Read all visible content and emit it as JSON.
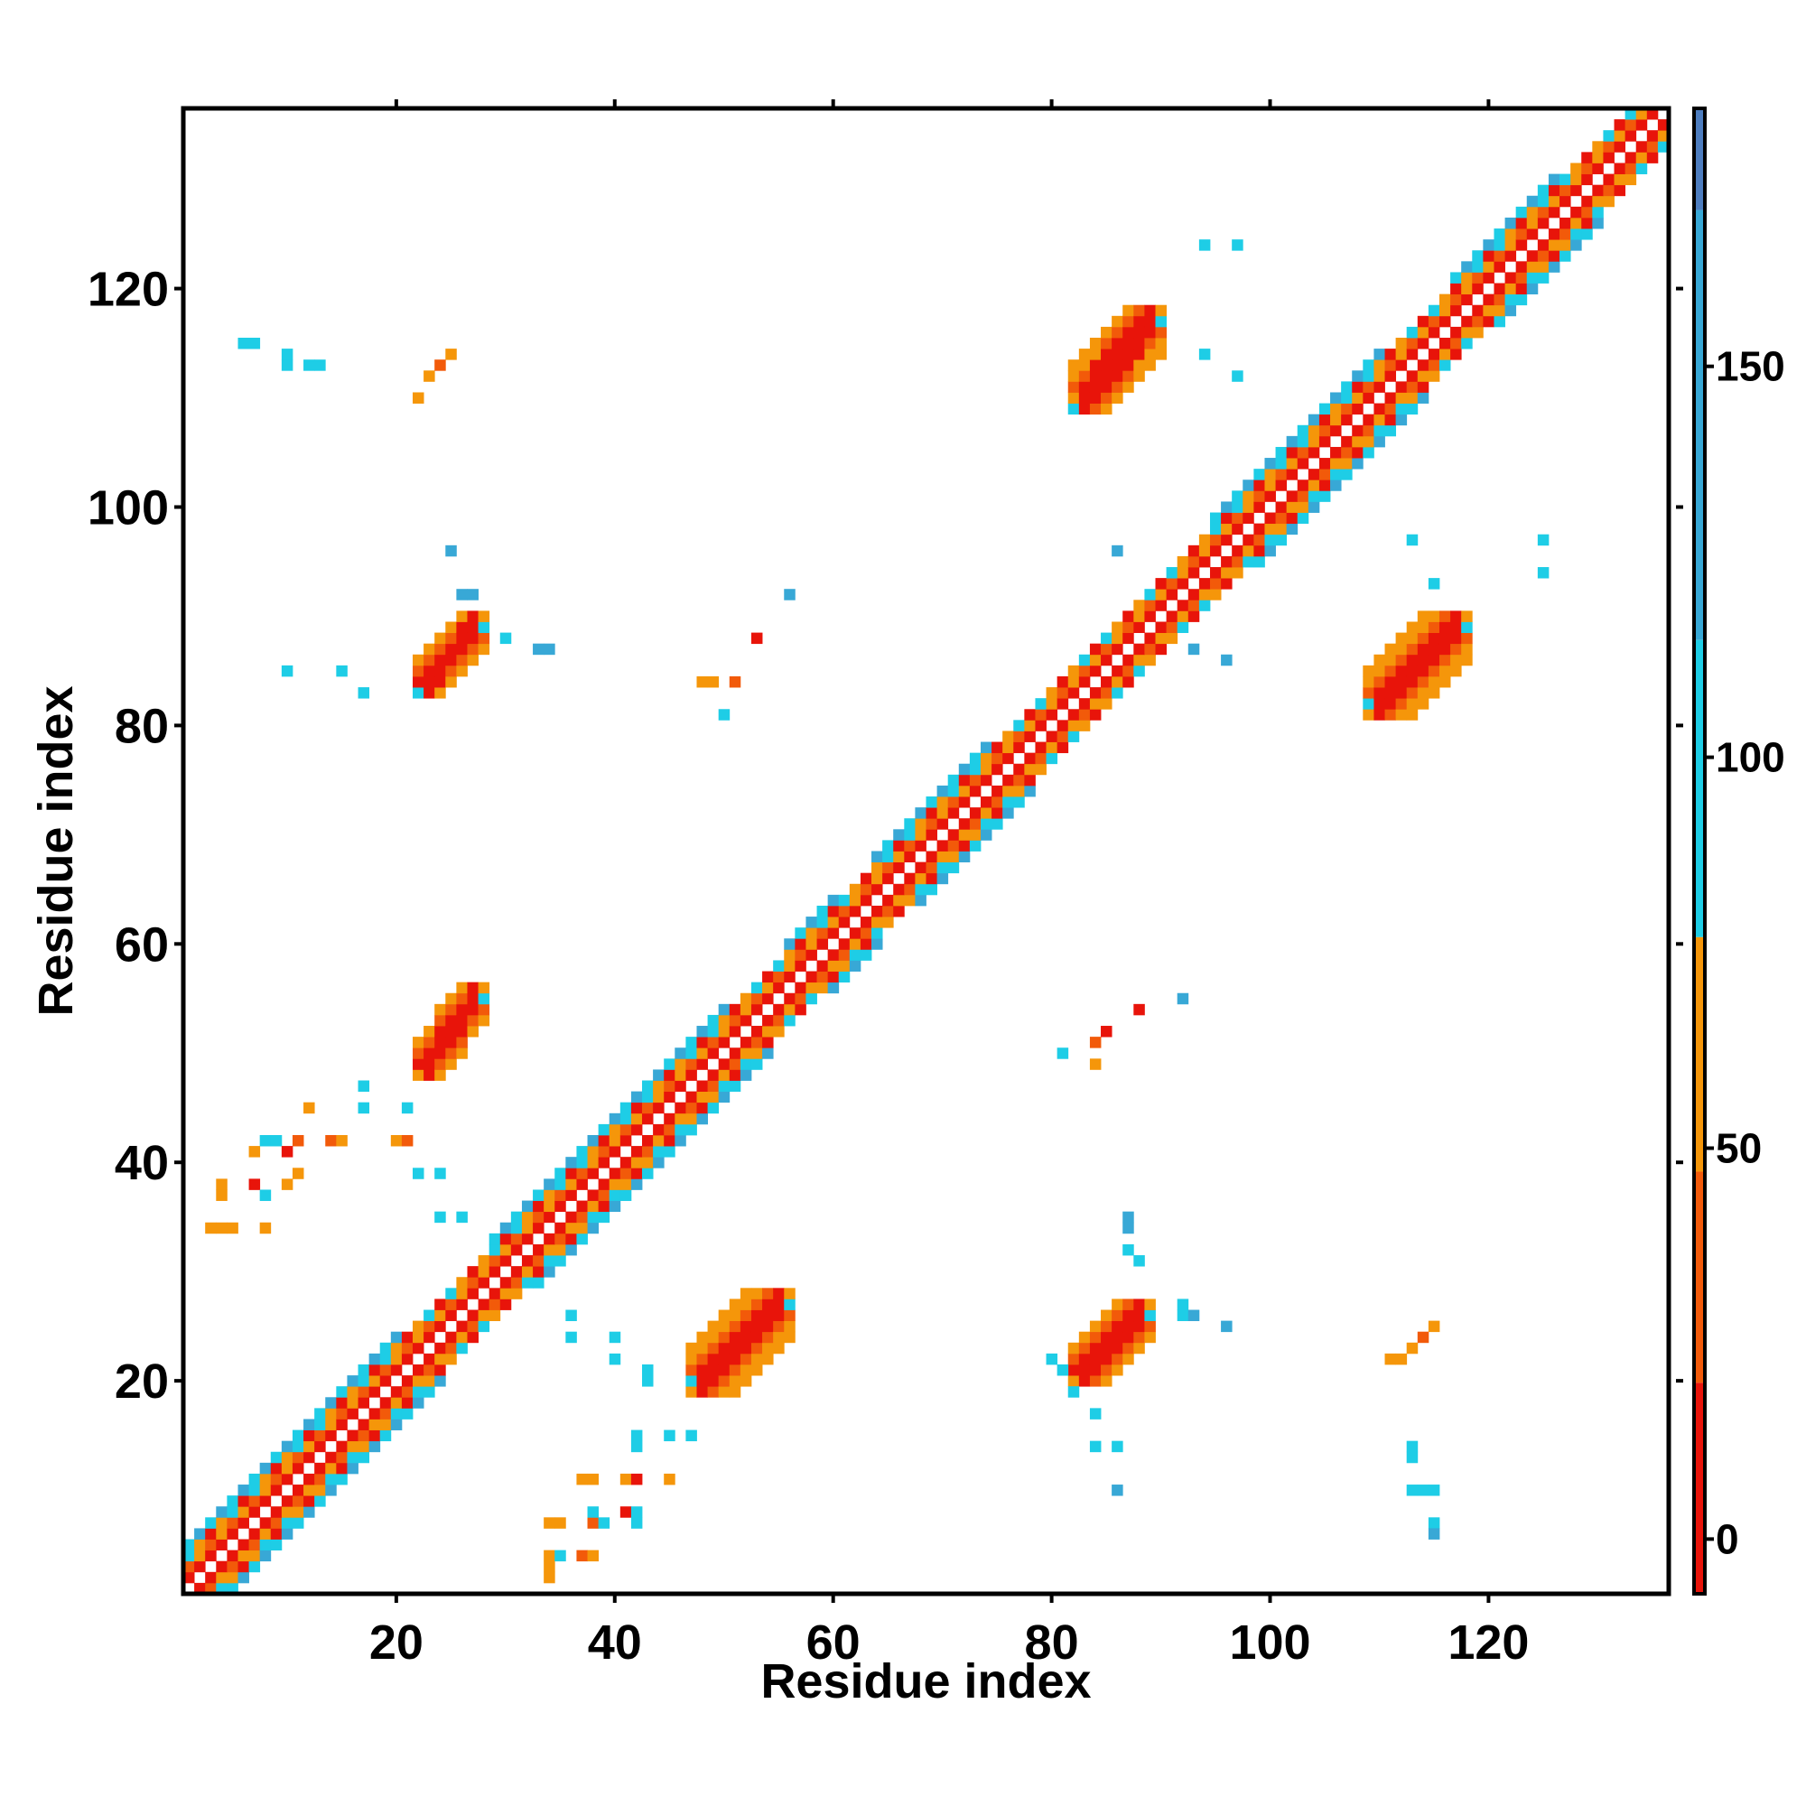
{
  "chart_data": {
    "type": "heatmap",
    "title": "",
    "xlabel": "Residue index",
    "ylabel": "Residue index",
    "xlim": [
      0.5,
      136.5
    ],
    "ylim": [
      0.5,
      136.5
    ],
    "x_ticks": [
      20,
      40,
      60,
      80,
      100,
      120
    ],
    "y_ticks": [
      20,
      40,
      60,
      80,
      100,
      120
    ],
    "colorbar": {
      "range": [
        -7,
        183
      ],
      "ticks": [
        0,
        50,
        100,
        150
      ],
      "bands": [
        {
          "from": -7,
          "to": 20,
          "color": "#e8140a"
        },
        {
          "from": 20,
          "to": 47,
          "color": "#f25a0a"
        },
        {
          "from": 47,
          "to": 77,
          "color": "#f5960a"
        },
        {
          "from": 77,
          "to": 115,
          "color": "#1ecde6"
        },
        {
          "from": 115,
          "to": 170,
          "color": "#38a8d6"
        },
        {
          "from": 170,
          "to": 183,
          "color": "#4d7dbf"
        }
      ]
    },
    "diagonal_band": {
      "half_width": 3,
      "wide_segments": [
        [
          1,
          20
        ],
        [
          29,
          50
        ],
        [
          56,
          60
        ],
        [
          64,
          74
        ],
        [
          95,
          110
        ],
        [
          117,
          126
        ]
      ]
    },
    "blocks": [
      {
        "x": [
          22,
          28
        ],
        "y": [
          48,
          56
        ],
        "value": 10
      },
      {
        "x": [
          22,
          28
        ],
        "y": [
          83,
          90
        ],
        "value": 10
      },
      {
        "x": [
          47,
          56
        ],
        "y": [
          19,
          28
        ],
        "value": 10
      },
      {
        "x": [
          82,
          89
        ],
        "y": [
          20,
          27
        ],
        "value": 10
      },
      {
        "x": [
          82,
          90
        ],
        "y": [
          109,
          118
        ],
        "value": 10
      },
      {
        "x": [
          109,
          118
        ],
        "y": [
          81,
          90
        ],
        "value": 10
      }
    ],
    "scatter_points": [
      [
        22,
        110,
        60
      ],
      [
        23,
        112,
        60
      ],
      [
        24,
        113,
        40
      ],
      [
        25,
        114,
        60
      ],
      [
        6,
        115,
        100
      ],
      [
        7,
        115,
        110
      ],
      [
        10,
        113,
        110
      ],
      [
        10,
        114,
        110
      ],
      [
        12,
        113,
        110
      ],
      [
        13,
        113,
        110
      ],
      [
        94,
        124,
        100
      ],
      [
        97,
        124,
        100
      ],
      [
        97,
        112,
        110
      ],
      [
        94,
        114,
        100
      ],
      [
        25,
        96,
        160
      ],
      [
        26,
        92,
        130
      ],
      [
        27,
        92,
        130
      ],
      [
        10,
        85,
        100
      ],
      [
        15,
        85,
        100
      ],
      [
        17,
        83,
        100
      ],
      [
        30,
        88,
        100
      ],
      [
        33,
        87,
        130
      ],
      [
        34,
        87,
        130
      ],
      [
        48,
        84,
        60
      ],
      [
        49,
        84,
        60
      ],
      [
        51,
        84,
        20
      ],
      [
        50,
        81,
        100
      ],
      [
        53,
        88,
        10
      ],
      [
        56,
        92,
        160
      ],
      [
        86,
        96,
        160
      ],
      [
        93,
        87,
        130
      ],
      [
        96,
        86,
        160
      ],
      [
        113,
        97,
        100
      ],
      [
        115,
        93,
        100
      ],
      [
        125,
        97,
        100
      ],
      [
        125,
        94,
        100
      ],
      [
        3,
        34,
        60
      ],
      [
        4,
        34,
        60
      ],
      [
        5,
        34,
        60
      ],
      [
        4,
        37,
        60
      ],
      [
        4,
        38,
        60
      ],
      [
        7,
        38,
        10
      ],
      [
        8,
        37,
        100
      ],
      [
        7,
        41,
        60
      ],
      [
        8,
        42,
        100
      ],
      [
        9,
        42,
        100
      ],
      [
        10,
        41,
        10
      ],
      [
        11,
        42,
        20
      ],
      [
        11,
        39,
        60
      ],
      [
        10,
        38,
        60
      ],
      [
        14,
        42,
        20
      ],
      [
        15,
        42,
        60
      ],
      [
        17,
        47,
        100
      ],
      [
        17,
        45,
        100
      ],
      [
        12,
        45,
        60
      ],
      [
        21,
        45,
        100
      ],
      [
        20,
        42,
        60
      ],
      [
        21,
        42,
        20
      ],
      [
        22,
        39,
        110
      ],
      [
        24,
        39,
        110
      ],
      [
        24,
        35,
        110
      ],
      [
        26,
        35,
        100
      ],
      [
        8,
        34,
        60
      ],
      [
        36,
        26,
        110
      ],
      [
        36,
        24,
        100
      ],
      [
        40,
        24,
        110
      ],
      [
        40,
        22,
        100
      ],
      [
        43,
        21,
        110
      ],
      [
        43,
        20,
        100
      ],
      [
        42,
        15,
        100
      ],
      [
        42,
        14,
        110
      ],
      [
        45,
        15,
        100
      ],
      [
        47,
        15,
        110
      ],
      [
        34,
        7,
        60
      ],
      [
        35,
        7,
        60
      ],
      [
        38,
        7,
        20
      ],
      [
        39,
        7,
        100
      ],
      [
        38,
        8,
        100
      ],
      [
        37,
        11,
        60
      ],
      [
        38,
        11,
        60
      ],
      [
        41,
        11,
        60
      ],
      [
        42,
        11,
        10
      ],
      [
        45,
        11,
        60
      ],
      [
        41,
        8,
        10
      ],
      [
        42,
        8,
        100
      ],
      [
        42,
        7,
        100
      ],
      [
        34,
        2,
        60
      ],
      [
        34,
        3,
        60
      ],
      [
        34,
        4,
        60
      ],
      [
        35,
        4,
        100
      ],
      [
        37,
        4,
        20
      ],
      [
        38,
        4,
        60
      ],
      [
        81,
        50,
        100
      ],
      [
        84,
        49,
        60
      ],
      [
        84,
        51,
        20
      ],
      [
        85,
        52,
        10
      ],
      [
        88,
        54,
        10
      ],
      [
        92,
        55,
        160
      ],
      [
        87,
        35,
        130
      ],
      [
        87,
        34,
        130
      ],
      [
        87,
        32,
        100
      ],
      [
        88,
        31,
        100
      ],
      [
        92,
        27,
        110
      ],
      [
        92,
        26,
        110
      ],
      [
        93,
        26,
        130
      ],
      [
        96,
        25,
        160
      ],
      [
        81,
        21,
        110
      ],
      [
        80,
        22,
        110
      ],
      [
        82,
        19,
        100
      ],
      [
        84,
        17,
        100
      ],
      [
        84,
        14,
        100
      ],
      [
        86,
        14,
        110
      ],
      [
        86,
        10,
        130
      ],
      [
        111,
        22,
        60
      ],
      [
        112,
        22,
        60
      ],
      [
        113,
        23,
        60
      ],
      [
        114,
        24,
        40
      ],
      [
        115,
        25,
        60
      ],
      [
        113,
        14,
        110
      ],
      [
        113,
        13,
        110
      ],
      [
        113,
        10,
        110
      ],
      [
        114,
        10,
        110
      ],
      [
        115,
        10,
        110
      ],
      [
        115,
        7,
        100
      ],
      [
        115,
        6,
        130
      ]
    ]
  }
}
